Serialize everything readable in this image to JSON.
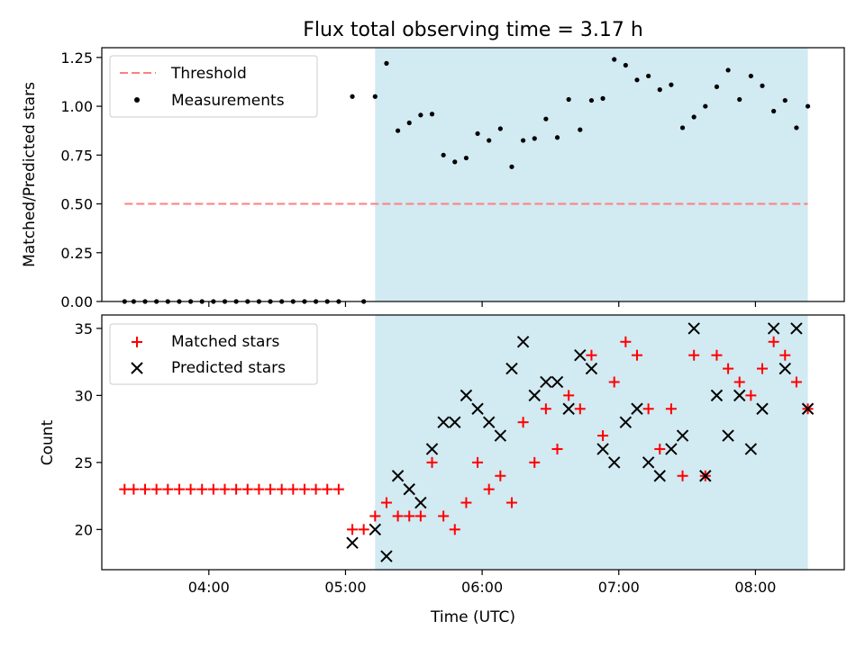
{
  "chart_data": [
    {
      "type": "scatter",
      "title": "Flux total observing time = 3.17 h",
      "xlabel": "",
      "ylabel": "Matched/Predicted stars",
      "xlim": [
        "03:13",
        "08:39"
      ],
      "ylim": [
        0,
        1.3
      ],
      "grid": false,
      "legend_position": "top-left",
      "x_tick_labels": [
        "04:00",
        "05:00",
        "06:00",
        "07:00",
        "08:00"
      ],
      "y_tick_labels": [
        "0.00",
        "0.25",
        "0.50",
        "0.75",
        "1.00",
        "1.25"
      ],
      "y_ticks": [
        0,
        0.25,
        0.5,
        0.75,
        1.0,
        1.25
      ],
      "highlight_region": {
        "x_start": "05:13",
        "x_end": "08:23",
        "color": "#add8e6"
      },
      "threshold": {
        "name": "Threshold",
        "value": 0.5,
        "x_start": "03:23",
        "x_end": "08:23",
        "color": "#ff7f7f"
      },
      "series": [
        {
          "name": "Measurements",
          "color": "#000000",
          "x": [
            "03:23",
            "03:27",
            "03:32",
            "03:37",
            "03:42",
            "03:47",
            "03:52",
            "03:57",
            "04:02",
            "04:07",
            "04:12",
            "04:17",
            "04:22",
            "04:27",
            "04:32",
            "04:37",
            "04:42",
            "04:47",
            "04:52",
            "04:57",
            "05:03",
            "05:08",
            "05:13",
            "05:18",
            "05:23",
            "05:28",
            "05:33",
            "05:38",
            "05:43",
            "05:48",
            "05:53",
            "05:58",
            "06:03",
            "06:08",
            "06:13",
            "06:18",
            "06:23",
            "06:28",
            "06:33",
            "06:38",
            "06:43",
            "06:48",
            "06:53",
            "06:58",
            "07:03",
            "07:08",
            "07:13",
            "07:18",
            "07:23",
            "07:28",
            "07:33",
            "07:38",
            "07:43",
            "07:48",
            "07:53",
            "07:58",
            "08:03",
            "08:08",
            "08:13",
            "08:18",
            "08:23"
          ],
          "y": [
            0,
            0,
            0,
            0,
            0,
            0,
            0,
            0,
            0,
            0,
            0,
            0,
            0,
            0,
            0,
            0,
            0,
            0,
            0,
            0,
            1.05,
            0,
            1.05,
            1.22,
            0.875,
            0.915,
            0.955,
            0.96,
            0.75,
            0.715,
            0.735,
            0.86,
            0.825,
            0.885,
            0.69,
            0.825,
            0.835,
            0.935,
            0.84,
            1.035,
            0.88,
            1.03,
            1.04,
            1.24,
            1.21,
            1.135,
            1.155,
            1.085,
            1.11,
            0.89,
            0.945,
            1.0,
            1.1,
            1.185,
            1.035,
            1.155,
            1.105,
            0.975,
            1.03,
            0.89,
            1.0
          ]
        }
      ]
    },
    {
      "type": "scatter",
      "title": "",
      "xlabel": "Time (UTC)",
      "ylabel": "Count",
      "xlim": [
        "03:13",
        "08:39"
      ],
      "ylim": [
        17,
        36
      ],
      "grid": false,
      "legend_position": "top-left",
      "x_tick_labels": [
        "04:00",
        "05:00",
        "06:00",
        "07:00",
        "08:00"
      ],
      "y_tick_labels": [
        "20",
        "25",
        "30",
        "35"
      ],
      "y_ticks": [
        20,
        25,
        30,
        35
      ],
      "highlight_region": {
        "x_start": "05:13",
        "x_end": "08:23",
        "color": "#add8e6"
      },
      "series": [
        {
          "name": "Matched stars",
          "marker": "plus",
          "color": "#ff0000",
          "x": [
            "03:23",
            "03:27",
            "03:32",
            "03:37",
            "03:42",
            "03:47",
            "03:52",
            "03:57",
            "04:02",
            "04:07",
            "04:12",
            "04:17",
            "04:22",
            "04:27",
            "04:32",
            "04:37",
            "04:42",
            "04:47",
            "04:52",
            "04:57",
            "05:03",
            "05:08",
            "05:13",
            "05:18",
            "05:23",
            "05:28",
            "05:33",
            "05:38",
            "05:43",
            "05:48",
            "05:53",
            "05:58",
            "06:03",
            "06:08",
            "06:13",
            "06:18",
            "06:23",
            "06:28",
            "06:33",
            "06:38",
            "06:43",
            "06:48",
            "06:53",
            "06:58",
            "07:03",
            "07:08",
            "07:13",
            "07:18",
            "07:23",
            "07:28",
            "07:33",
            "07:38",
            "07:43",
            "07:48",
            "07:53",
            "07:58",
            "08:03",
            "08:08",
            "08:13",
            "08:18",
            "08:23"
          ],
          "y": [
            23,
            23,
            23,
            23,
            23,
            23,
            23,
            23,
            23,
            23,
            23,
            23,
            23,
            23,
            23,
            23,
            23,
            23,
            23,
            23,
            20,
            20,
            21,
            22,
            21,
            21,
            21,
            25,
            21,
            20,
            22,
            25,
            23,
            24,
            22,
            28,
            25,
            29,
            26,
            30,
            29,
            33,
            27,
            31,
            34,
            33,
            29,
            26,
            29,
            24,
            33,
            24,
            33,
            32,
            31,
            30,
            32,
            34,
            33,
            31,
            29
          ]
        },
        {
          "name": "Predicted stars",
          "marker": "x",
          "color": "#000000",
          "x": [
            "05:03",
            "05:13",
            "05:18",
            "05:23",
            "05:28",
            "05:33",
            "05:38",
            "05:43",
            "05:48",
            "05:53",
            "05:58",
            "06:03",
            "06:08",
            "06:13",
            "06:18",
            "06:23",
            "06:28",
            "06:33",
            "06:38",
            "06:43",
            "06:48",
            "06:53",
            "06:58",
            "07:03",
            "07:08",
            "07:13",
            "07:18",
            "07:23",
            "07:28",
            "07:33",
            "07:38",
            "07:43",
            "07:48",
            "07:53",
            "07:58",
            "08:03",
            "08:08",
            "08:13",
            "08:18",
            "08:23"
          ],
          "y": [
            19,
            20,
            18,
            24,
            23,
            22,
            26,
            28,
            28,
            30,
            29,
            28,
            27,
            32,
            34,
            30,
            31,
            31,
            29,
            33,
            32,
            26,
            25,
            28,
            29,
            25,
            24,
            26,
            27,
            35,
            24,
            30,
            27,
            30,
            26,
            29,
            35,
            32,
            35,
            29
          ]
        }
      ]
    }
  ]
}
